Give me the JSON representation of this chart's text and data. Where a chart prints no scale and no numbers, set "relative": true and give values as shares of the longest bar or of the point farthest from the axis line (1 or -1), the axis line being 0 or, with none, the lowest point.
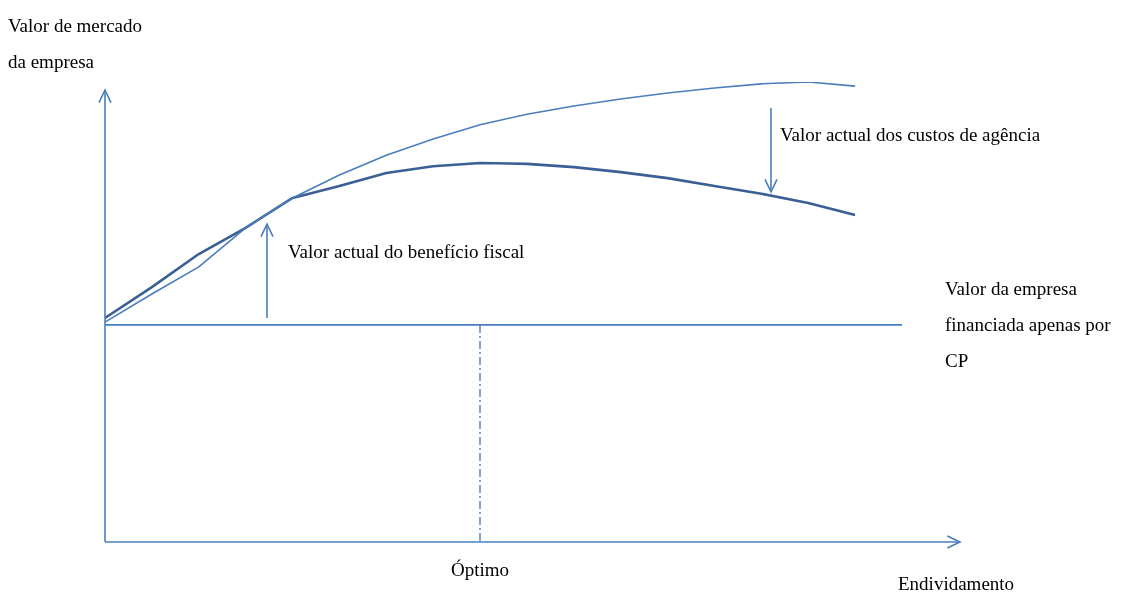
{
  "chart_data": {
    "type": "line",
    "relative": true,
    "xlabel": "Endividamento",
    "ylabel": "Valor de mercado\nda empresa",
    "categories": [
      null,
      null,
      null,
      null,
      null,
      null,
      null,
      null,
      null,
      null,
      null,
      null,
      null,
      null,
      null,
      null,
      null,
      null
    ],
    "legend": false,
    "marker": "none",
    "series": [
      {
        "color": "#4a7ebb",
        "values": [
          0.478,
          0.539,
          0.598,
          0.683,
          0.748,
          0.798,
          0.841,
          0.876,
          0.907,
          0.93,
          0.948,
          0.963,
          0.976,
          0.987,
          0.996,
          1,
          0.991,
          null
        ]
      },
      {
        "color": "#3a5f95",
        "values": [
          0.487,
          0.554,
          0.626,
          0.683,
          0.748,
          0.774,
          0.802,
          0.817,
          0.824,
          0.822,
          0.815,
          0.804,
          0.791,
          0.774,
          0.757,
          0.737,
          0.711,
          null
        ]
      },
      {
        "name": "Valor da empresa financiada apenas por CP",
        "color": "#4a7ebb",
        "values": [
          0.472,
          0.472,
          0.472,
          0.472,
          0.472,
          0.472,
          0.472,
          0.472,
          0.472,
          0.472,
          0.472,
          0.472,
          0.472,
          0.472,
          0.472,
          0.472,
          0.472,
          0.472
        ]
      }
    ],
    "annotations": [
      "Valor actual do benefício fiscal",
      "Valor actual dos custos de agência",
      "Óptimo"
    ]
  }
}
